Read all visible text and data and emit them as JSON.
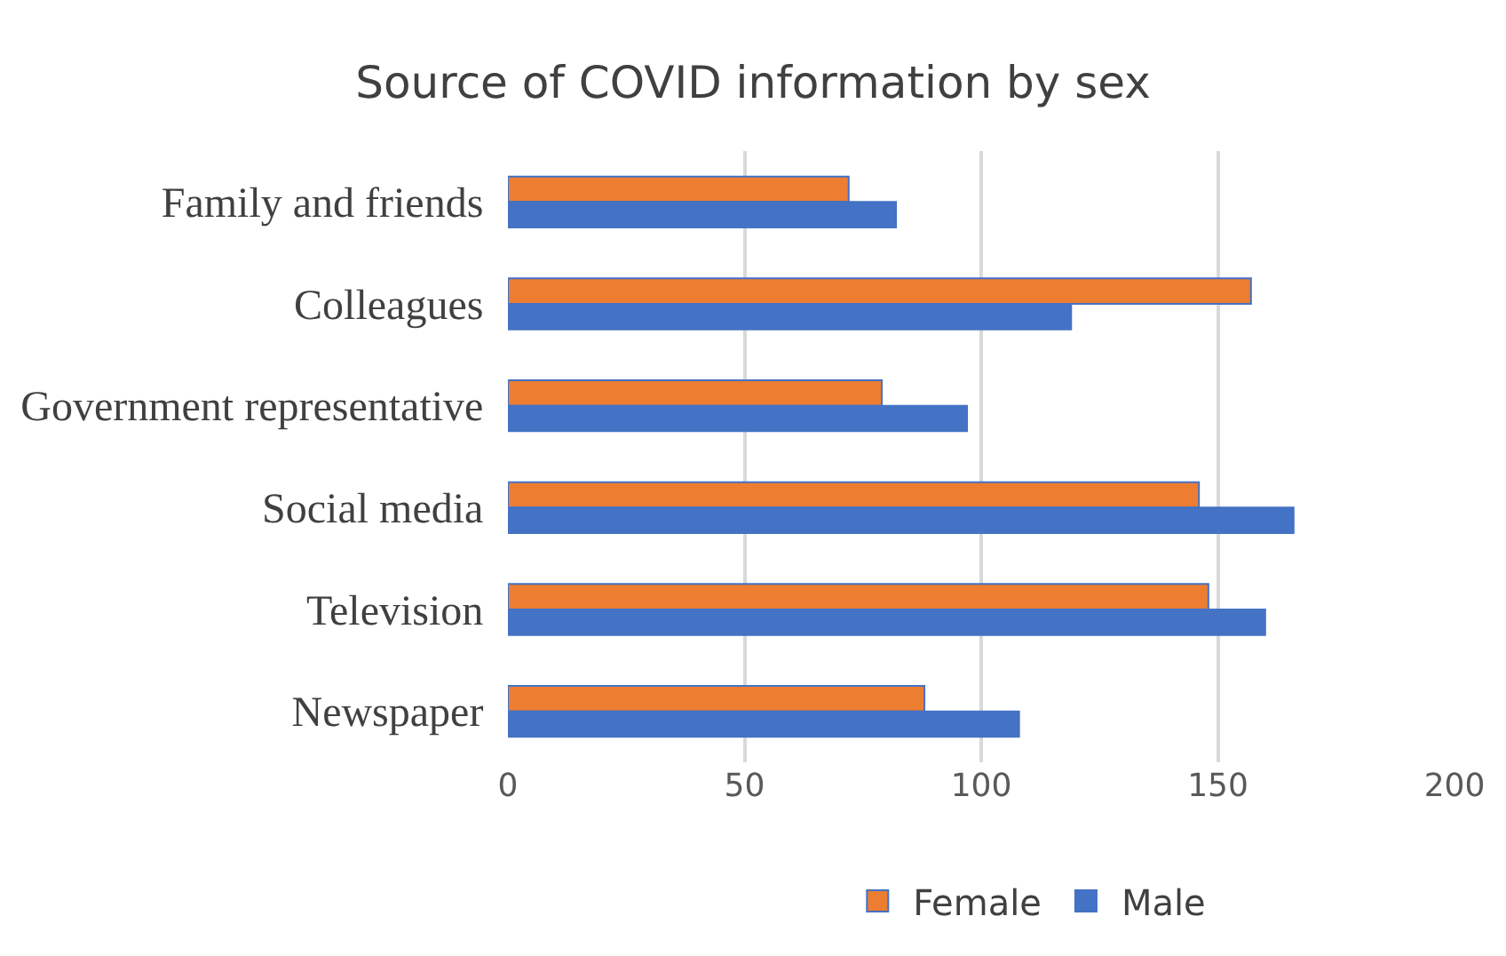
{
  "chart_data": {
    "type": "bar",
    "title": "Source of COVID information by sex",
    "orientation": "horizontal",
    "categories": [
      "Family and friends",
      "Colleagues",
      "Government representative",
      "Social media",
      "Television",
      "Newspaper"
    ],
    "series": [
      {
        "name": "Female",
        "color": "#ed7d31",
        "values": [
          72,
          157,
          79,
          146,
          148,
          88
        ]
      },
      {
        "name": "Male",
        "color": "#4472c4",
        "values": [
          82,
          119,
          97,
          166,
          160,
          108
        ]
      }
    ],
    "xlim": [
      0,
      200
    ],
    "xticks": [
      0,
      50,
      100,
      150,
      200
    ],
    "grid": "x",
    "legend": "bottom"
  }
}
